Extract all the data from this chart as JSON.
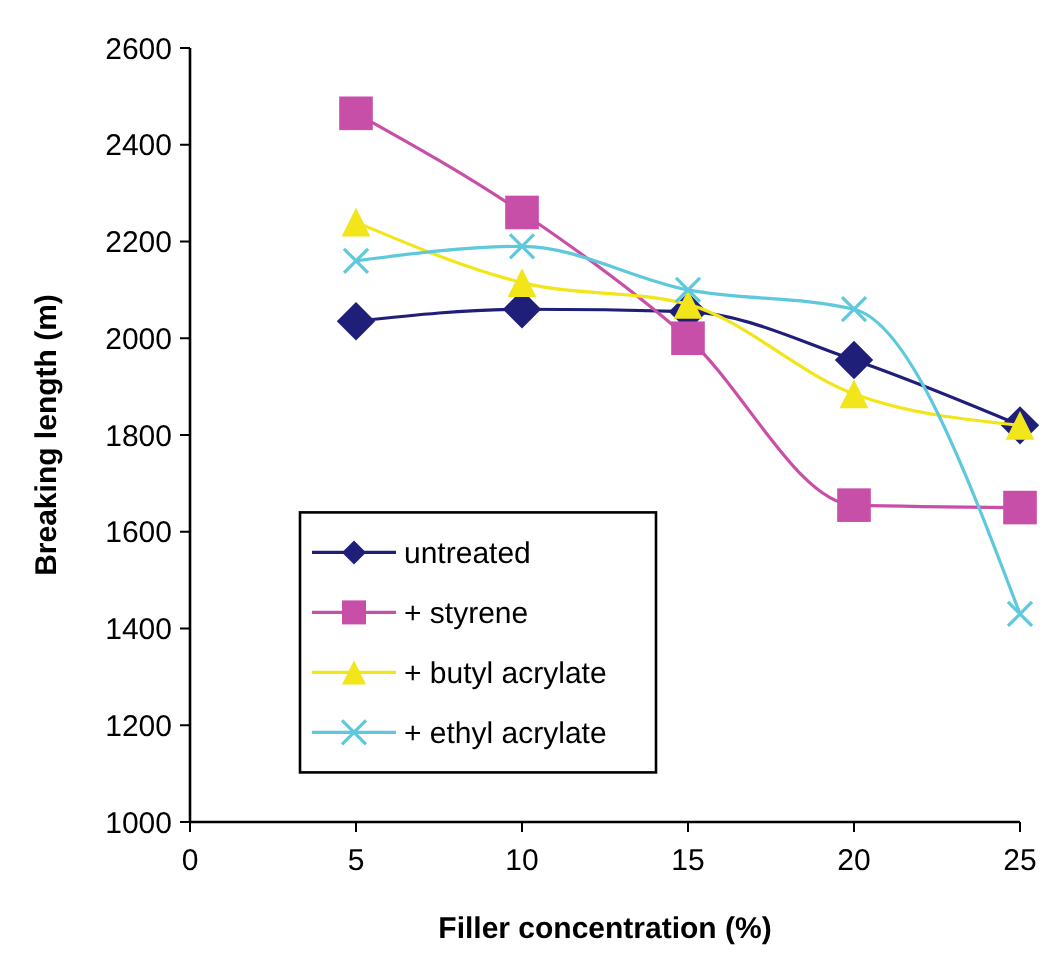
{
  "chart_data": {
    "type": "line",
    "xlabel": "Filler concentration (%)",
    "ylabel": "Breaking length (m)",
    "x": [
      5,
      10,
      15,
      20,
      25
    ],
    "xlim": [
      0,
      25
    ],
    "xticks": [
      0,
      5,
      10,
      15,
      20,
      25
    ],
    "ylim": [
      1000,
      2600
    ],
    "yticks": [
      1000,
      1200,
      1400,
      1600,
      1800,
      2000,
      2200,
      2400,
      2600
    ],
    "grid": false,
    "legend": "left",
    "series": [
      {
        "name": "untreated",
        "color": "#1f1f7a",
        "marker": "diamond",
        "values": [
          2035,
          2060,
          2055,
          1955,
          1820
        ]
      },
      {
        "name": "+ styrene",
        "color": "#c84fa8",
        "marker": "square",
        "values": [
          2465,
          2260,
          2000,
          1655,
          1650
        ]
      },
      {
        "name": "+ butyl acrylate",
        "color": "#f2e51a",
        "marker": "triangle",
        "values": [
          2240,
          2115,
          2070,
          1885,
          1820
        ]
      },
      {
        "name": "+ ethyl acrylate",
        "color": "#5ec8dc",
        "marker": "cross",
        "values": [
          2160,
          2190,
          2100,
          2060,
          1430
        ]
      }
    ]
  }
}
